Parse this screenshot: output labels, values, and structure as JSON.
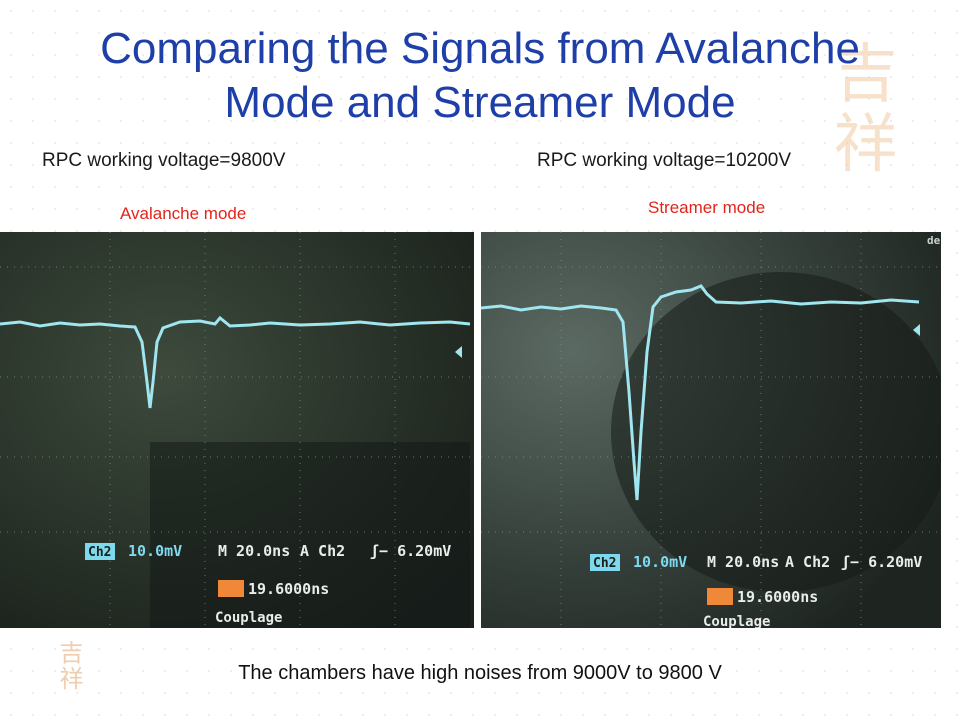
{
  "slide": {
    "title_line1": "Comparing the Signals from Avalanche",
    "title_line2": "Mode and Streamer Mode",
    "left_caption": "RPC working voltage=9800V",
    "right_caption": "RPC working voltage=10200V",
    "left_mode": "Avalanche mode",
    "right_mode": "Streamer mode",
    "footer": "The chambers have high noises  from 9000V to 9800 V",
    "colors": {
      "title": "#1f3fa8",
      "mode_label": "#e3241b",
      "trace": "#9fe6f0",
      "readout": "#7fd9ee",
      "trigger": "#f0883a"
    }
  },
  "scope_left": {
    "ch_label": "Ch2",
    "volts": "10.0mV",
    "timebase": "M 20.0ns",
    "trig_ch": "A  Ch2",
    "trig_level": "ʃ− 6.20mV",
    "trig_pos": "19.6000ns",
    "menu": "Couplage"
  },
  "scope_right": {
    "ch_label": "Ch2",
    "volts": "10.0mV",
    "timebase": "M 20.0ns",
    "trig_ch": "A  Ch2",
    "trig_level": "ʃ− 6.20mV",
    "trig_pos": "19.6000ns",
    "menu": "Couplage",
    "corner": "de"
  }
}
